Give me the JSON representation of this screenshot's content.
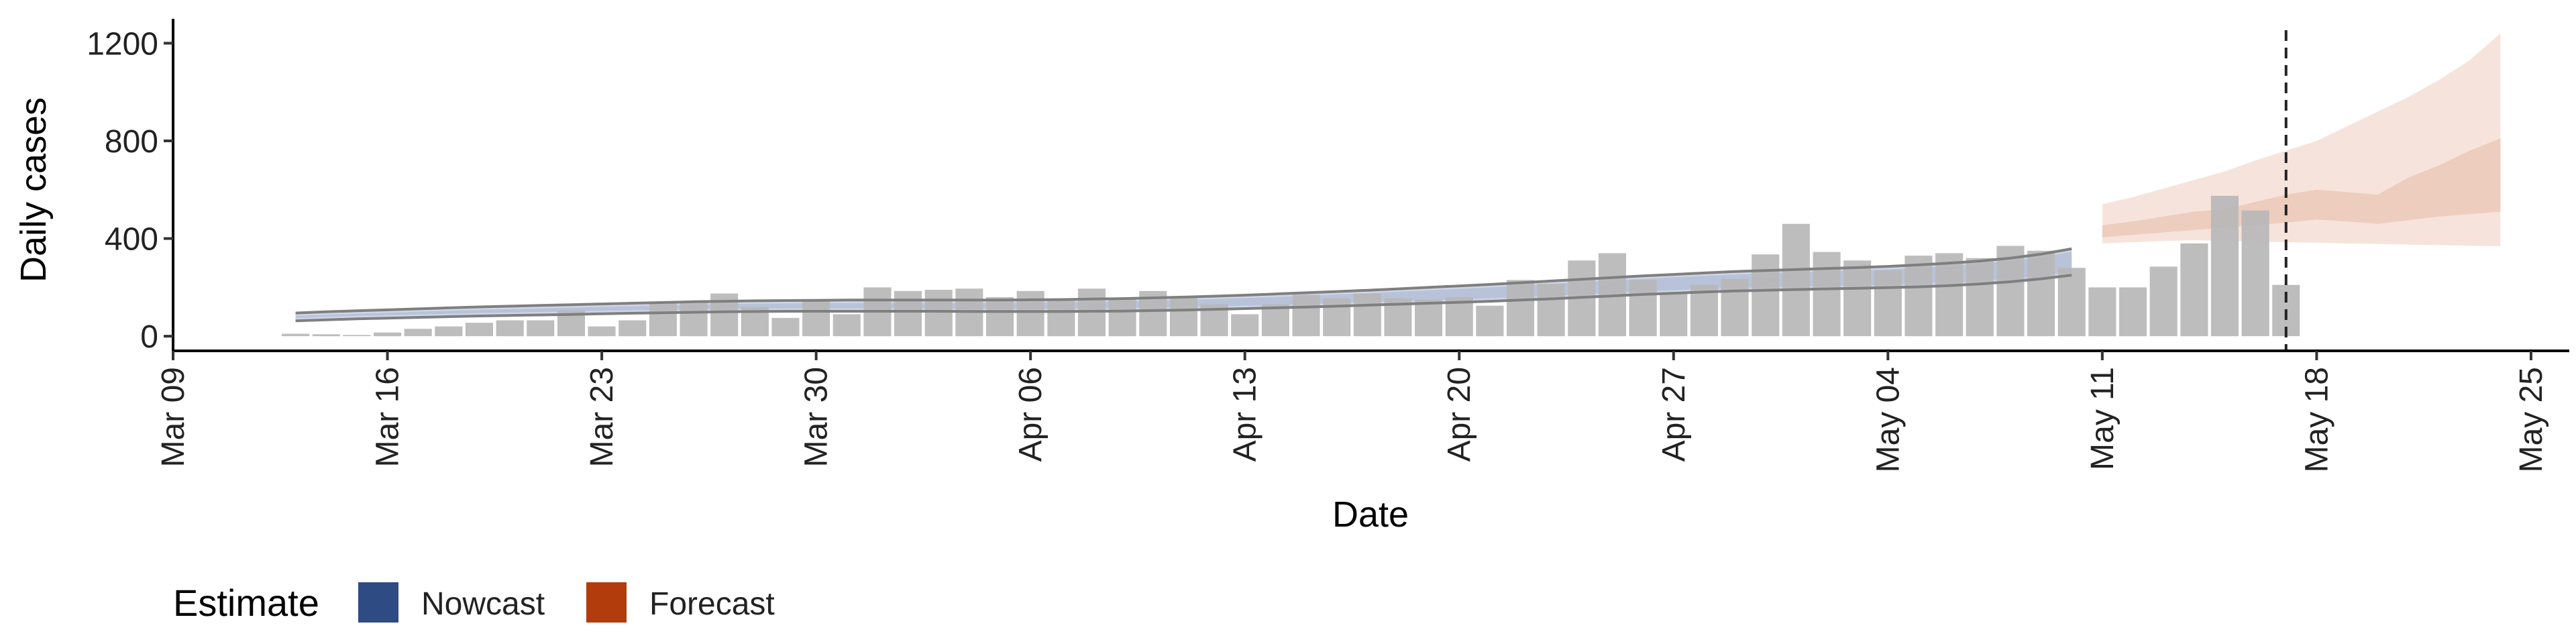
{
  "chart_data": {
    "type": "bar",
    "xlabel": "Date",
    "ylabel": "Daily cases",
    "x_domain": [
      "2020-03-09",
      "2020-05-25"
    ],
    "ylim": [
      -60,
      1300
    ],
    "y_ticks": [
      0,
      400,
      800,
      1200
    ],
    "x_ticks": [
      {
        "date": "2020-03-09",
        "label": "Mar 09"
      },
      {
        "date": "2020-03-16",
        "label": "Mar 16"
      },
      {
        "date": "2020-03-23",
        "label": "Mar 23"
      },
      {
        "date": "2020-03-30",
        "label": "Mar 30"
      },
      {
        "date": "2020-04-06",
        "label": "Apr 06"
      },
      {
        "date": "2020-04-13",
        "label": "Apr 13"
      },
      {
        "date": "2020-04-20",
        "label": "Apr 20"
      },
      {
        "date": "2020-04-27",
        "label": "Apr 27"
      },
      {
        "date": "2020-05-04",
        "label": "May 04"
      },
      {
        "date": "2020-05-11",
        "label": "May 11"
      },
      {
        "date": "2020-05-18",
        "label": "May 18"
      },
      {
        "date": "2020-05-25",
        "label": "May 25"
      }
    ],
    "grid": false,
    "vline_date": "2020-05-17",
    "observed_cases": {
      "start_date": "2020-03-13",
      "values": [
        10,
        8,
        5,
        15,
        30,
        40,
        55,
        65,
        65,
        105,
        40,
        65,
        135,
        140,
        175,
        120,
        75,
        150,
        90,
        200,
        185,
        190,
        195,
        160,
        185,
        150,
        195,
        150,
        185,
        160,
        130,
        90,
        130,
        170,
        155,
        175,
        155,
        150,
        160,
        125,
        230,
        215,
        310,
        340,
        230,
        175,
        210,
        235,
        335,
        460,
        345,
        310,
        270,
        330,
        340,
        320,
        370,
        350,
        280,
        200,
        200,
        285,
        380,
        575,
        515,
        210
      ]
    },
    "nowcast_band": {
      "start_date": "2020-03-13",
      "mid_lower": [
        75,
        79,
        83,
        86,
        89,
        92,
        95,
        97,
        99,
        101,
        104,
        106,
        108,
        110,
        112,
        113,
        114,
        114,
        114,
        114,
        114,
        114,
        113,
        113,
        113,
        113,
        114,
        115,
        117,
        119,
        122,
        125,
        128,
        131,
        135,
        139,
        143,
        147,
        151,
        155,
        160,
        165,
        171,
        177,
        183,
        188,
        193,
        197,
        200,
        203,
        206,
        208,
        211,
        214,
        219,
        226,
        235,
        247,
        262
      ],
      "mid_upper": [
        83,
        88,
        92,
        96,
        100,
        104,
        108,
        111,
        114,
        117,
        120,
        123,
        126,
        129,
        131,
        133,
        134,
        135,
        136,
        136,
        136,
        136,
        136,
        136,
        137,
        138,
        140,
        142,
        145,
        148,
        152,
        156,
        161,
        166,
        171,
        176,
        182,
        188,
        194,
        200,
        207,
        214,
        221,
        228,
        235,
        241,
        247,
        253,
        257,
        261,
        265,
        269,
        274,
        280,
        287,
        296,
        308,
        324,
        346
      ]
    },
    "forecast_band": {
      "start_date": "2020-05-11",
      "outer_lower": [
        380,
        385,
        390,
        393,
        390,
        388,
        385,
        383,
        380,
        378,
        375,
        373,
        370,
        369
      ],
      "outer_upper": [
        540,
        570,
        605,
        640,
        675,
        720,
        760,
        800,
        860,
        920,
        980,
        1050,
        1130,
        1240
      ],
      "inner_lower": [
        405,
        415,
        425,
        435,
        445,
        455,
        465,
        478,
        470,
        460,
        475,
        490,
        500,
        510
      ],
      "inner_upper": [
        455,
        470,
        490,
        510,
        520,
        550,
        580,
        600,
        590,
        580,
        650,
        700,
        760,
        810
      ]
    },
    "legend": {
      "title": "Estimate",
      "position": "bottom-left",
      "entries": [
        {
          "label": "Nowcast",
          "color": "#2f4b83"
        },
        {
          "label": "Forecast",
          "color": "#b33c0d"
        }
      ]
    },
    "colors": {
      "bar": "#b7b7b7",
      "nowcast_light": "#cfd6e6",
      "nowcast_mid": "#b8c3da",
      "nowcast_line": "#7f7f7f",
      "forecast_outer": "#f6e4dc",
      "forecast_inner": "#edcdbd",
      "vline": "#222222"
    }
  }
}
